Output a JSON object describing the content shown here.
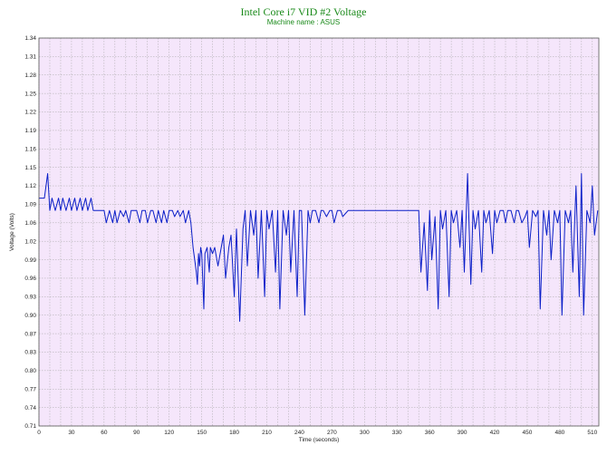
{
  "title": "Intel Core i7 VID #2 Voltage",
  "subtitle": "Machine name : ASUS",
  "colors": {
    "plot_bg": "#f5e6fb",
    "grid": "#a8a8a8",
    "series": "#0a1ec8",
    "title": "#1a8a1a"
  },
  "chart_data": {
    "type": "line",
    "xlabel": "Time (seconds)",
    "ylabel": "Voltage (Volts)",
    "xlim": [
      0,
      516
    ],
    "ylim": [
      0.71,
      1.34
    ],
    "grid": true,
    "x_ticks": [
      "0",
      "30",
      "60",
      "90",
      "120",
      "150",
      "180",
      "210",
      "240",
      "270",
      "300",
      "330",
      "360",
      "390",
      "420",
      "450",
      "480",
      "510"
    ],
    "y_ticks": [
      "1.34",
      "1.31",
      "1.28",
      "1.25",
      "1.22",
      "1.19",
      "1.16",
      "1.15",
      "1.12",
      "1.09",
      "1.06",
      "1.02",
      "0.99",
      "0.96",
      "0.93",
      "0.90",
      "0.87",
      "0.83",
      "0.80",
      "0.77",
      "0.74",
      "0.71"
    ],
    "series": [
      {
        "x": [
          0,
          5,
          8,
          10,
          12,
          15,
          18,
          20,
          22,
          25,
          28,
          30,
          33,
          35,
          38,
          40,
          43,
          45,
          48,
          50,
          55,
          60,
          62,
          65,
          68,
          70,
          72,
          75,
          78,
          80,
          83,
          85,
          88,
          90,
          93,
          95,
          98,
          100,
          103,
          105,
          108,
          110,
          113,
          115,
          118,
          120,
          123,
          125,
          128,
          130,
          133,
          135,
          138,
          140,
          142,
          145,
          146,
          147,
          148,
          149,
          150,
          152,
          153,
          155,
          157,
          158,
          160,
          162,
          165,
          168,
          170,
          172,
          175,
          177,
          180,
          182,
          185,
          188,
          190,
          192,
          195,
          198,
          200,
          202,
          205,
          208,
          210,
          212,
          215,
          218,
          220,
          222,
          225,
          228,
          230,
          232,
          235,
          238,
          240,
          242,
          245,
          248,
          250,
          252,
          255,
          258,
          260,
          262,
          265,
          268,
          270,
          272,
          275,
          278,
          280,
          285,
          290,
          295,
          300,
          305,
          310,
          315,
          320,
          325,
          330,
          335,
          340,
          345,
          350,
          352,
          355,
          358,
          360,
          362,
          365,
          368,
          370,
          372,
          375,
          378,
          380,
          382,
          385,
          388,
          390,
          392,
          395,
          398,
          400,
          402,
          405,
          408,
          410,
          412,
          415,
          418,
          420,
          422,
          425,
          428,
          430,
          432,
          435,
          438,
          440,
          442,
          445,
          448,
          450,
          452,
          455,
          458,
          460,
          462,
          465,
          468,
          470,
          472,
          475,
          478,
          480,
          482,
          485,
          488,
          490,
          492,
          495,
          498,
          500,
          502,
          505,
          508,
          510,
          512,
          515
        ],
        "y": [
          1.08,
          1.08,
          1.12,
          1.06,
          1.08,
          1.06,
          1.08,
          1.06,
          1.08,
          1.06,
          1.08,
          1.06,
          1.08,
          1.06,
          1.08,
          1.06,
          1.08,
          1.06,
          1.08,
          1.06,
          1.06,
          1.06,
          1.04,
          1.06,
          1.04,
          1.06,
          1.04,
          1.06,
          1.05,
          1.06,
          1.04,
          1.06,
          1.06,
          1.06,
          1.04,
          1.06,
          1.06,
          1.04,
          1.06,
          1.06,
          1.04,
          1.06,
          1.04,
          1.06,
          1.04,
          1.06,
          1.06,
          1.05,
          1.06,
          1.05,
          1.06,
          1.04,
          1.06,
          1.04,
          1.0,
          0.96,
          0.94,
          0.99,
          0.97,
          1.0,
          0.99,
          0.9,
          0.99,
          1.0,
          0.96,
          1.0,
          0.99,
          1.0,
          0.97,
          1.0,
          1.02,
          0.95,
          1.0,
          1.02,
          0.92,
          1.03,
          0.88,
          1.03,
          1.06,
          0.97,
          1.06,
          1.02,
          1.06,
          0.95,
          1.06,
          0.92,
          1.06,
          1.03,
          1.06,
          0.96,
          1.06,
          0.9,
          1.06,
          1.02,
          1.06,
          0.96,
          1.06,
          0.92,
          1.06,
          1.06,
          0.89,
          1.06,
          1.04,
          1.06,
          1.06,
          1.04,
          1.06,
          1.06,
          1.05,
          1.06,
          1.06,
          1.04,
          1.06,
          1.06,
          1.05,
          1.06,
          1.06,
          1.06,
          1.06,
          1.06,
          1.06,
          1.06,
          1.06,
          1.06,
          1.06,
          1.06,
          1.06,
          1.06,
          1.06,
          0.96,
          1.04,
          0.93,
          1.06,
          0.98,
          1.05,
          0.9,
          1.06,
          1.03,
          1.06,
          0.92,
          1.06,
          1.04,
          1.06,
          1.0,
          1.06,
          0.96,
          1.12,
          0.94,
          1.06,
          1.03,
          1.06,
          0.96,
          1.06,
          1.04,
          1.06,
          0.99,
          1.06,
          1.04,
          1.06,
          1.06,
          1.04,
          1.06,
          1.06,
          1.04,
          1.06,
          1.06,
          1.04,
          1.05,
          1.06,
          1.0,
          1.06,
          1.05,
          1.06,
          0.9,
          1.06,
          1.02,
          1.06,
          0.98,
          1.06,
          1.04,
          1.06,
          0.89,
          1.06,
          1.04,
          1.06,
          0.96,
          1.1,
          0.92,
          1.12,
          0.89,
          1.06,
          1.04,
          1.1,
          1.02,
          1.06
        ]
      }
    ]
  }
}
